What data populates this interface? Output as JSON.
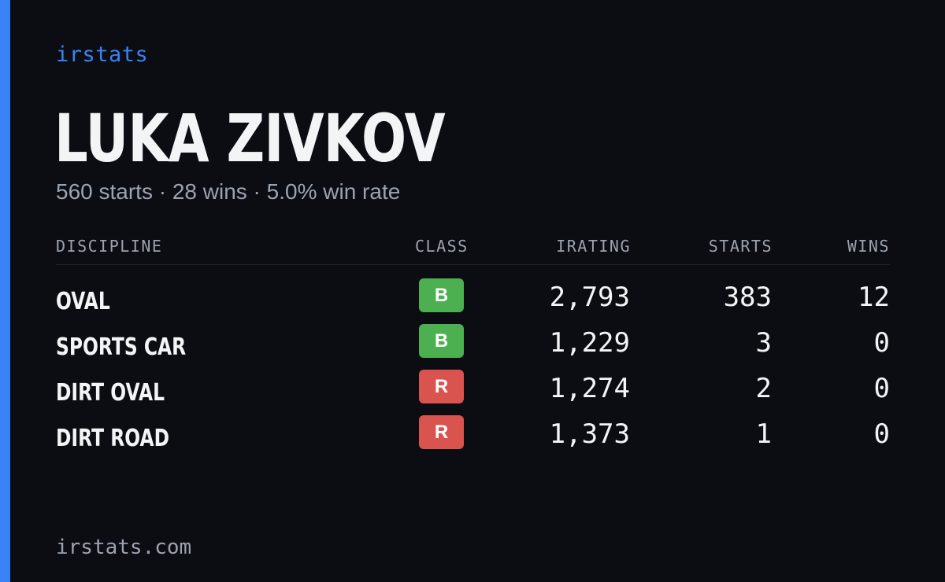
{
  "brand": "irstats",
  "driver": {
    "name": "LUKA ZIVKOV",
    "summary": "560 starts · 28 wins · 5.0% win rate"
  },
  "table": {
    "headers": {
      "discipline": "DISCIPLINE",
      "class": "CLASS",
      "irating": "IRATING",
      "starts": "STARTS",
      "wins": "WINS"
    },
    "rows": [
      {
        "discipline": "OVAL",
        "class": "B",
        "class_color": "#4caf50",
        "irating": "2,793",
        "starts": "383",
        "wins": "12"
      },
      {
        "discipline": "SPORTS CAR",
        "class": "B",
        "class_color": "#4caf50",
        "irating": "1,229",
        "starts": "3",
        "wins": "0"
      },
      {
        "discipline": "DIRT OVAL",
        "class": "R",
        "class_color": "#d9534f",
        "irating": "1,274",
        "starts": "2",
        "wins": "0"
      },
      {
        "discipline": "DIRT ROAD",
        "class": "R",
        "class_color": "#d9534f",
        "irating": "1,373",
        "starts": "1",
        "wins": "0"
      }
    ]
  },
  "footer": "irstats.com",
  "colors": {
    "accent": "#3b82f6",
    "background": "#0b0d13",
    "muted_text": "#9ca3af",
    "class_b": "#4caf50",
    "class_r": "#d9534f"
  }
}
